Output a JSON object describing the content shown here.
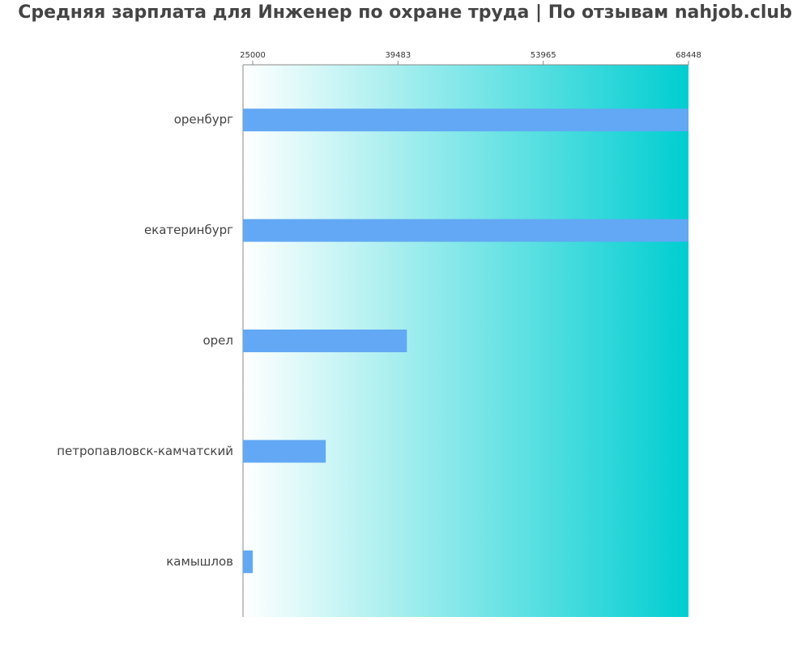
{
  "chart_data": {
    "type": "barh",
    "title": "Средняя зарплата для Инженер по охране труда | По отзывам nahjob.club",
    "categories": [
      "оренбург",
      "екатеринбург",
      "орел",
      "петропавловск-камчатский",
      "камышлов"
    ],
    "values": [
      68448,
      68448,
      40370,
      32280,
      25000
    ],
    "color": "#62a8f4",
    "xlim": [
      24030,
      68448
    ],
    "xticks": [
      25000,
      39483,
      53965,
      68448
    ]
  }
}
